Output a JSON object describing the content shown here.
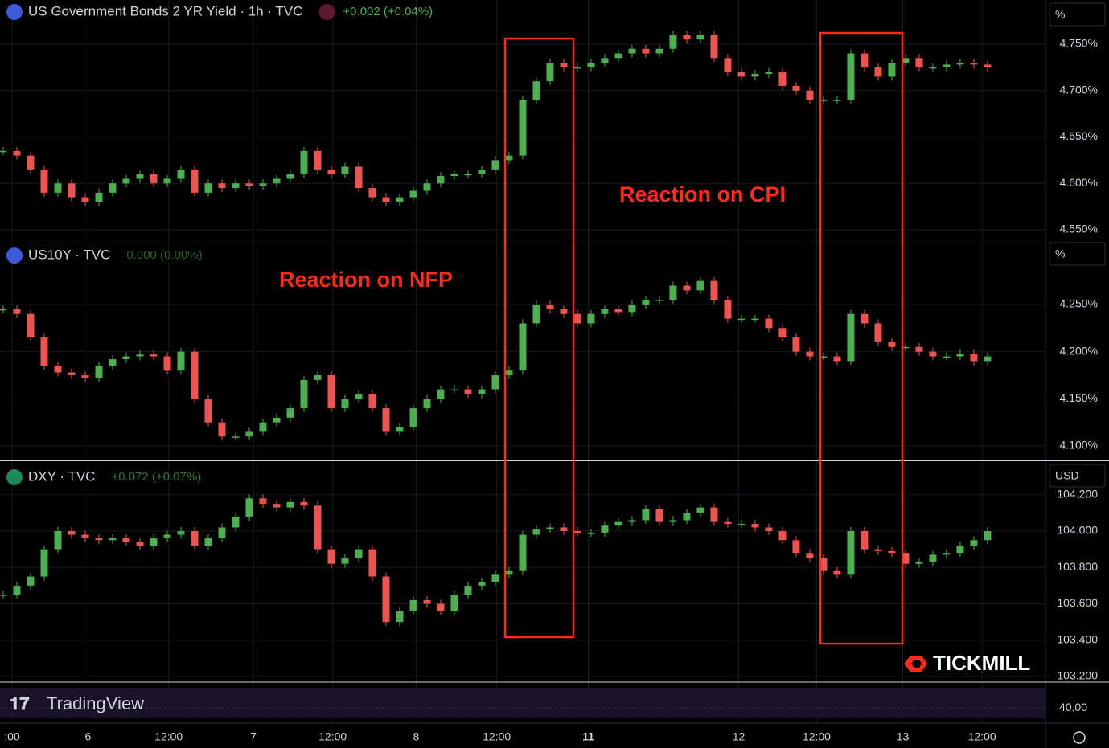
{
  "panes": [
    {
      "type": "candlestick",
      "title": "US Government Bonds 2 YR Yield · 1h · TVC",
      "change": "+0.002 (+0.04%)",
      "change_color": "#4caf50",
      "unit": "%",
      "ylim": [
        4.5405,
        4.7976
      ],
      "yticks": [
        {
          "value": 4.55,
          "label": "4.550%"
        },
        {
          "value": 4.6,
          "label": "4.600%"
        },
        {
          "value": 4.65,
          "label": "4.650%"
        },
        {
          "value": 4.7,
          "label": "4.700%"
        },
        {
          "value": 4.75,
          "label": "4.750%"
        }
      ],
      "closes": [
        4.635,
        4.63,
        4.615,
        4.59,
        4.6,
        4.585,
        4.58,
        4.59,
        4.6,
        4.605,
        4.61,
        4.6,
        4.605,
        4.615,
        4.59,
        4.6,
        4.595,
        4.6,
        4.597,
        4.6,
        4.605,
        4.61,
        4.635,
        4.615,
        4.61,
        4.618,
        4.595,
        4.585,
        4.58,
        4.585,
        4.592,
        4.6,
        4.608,
        4.61,
        4.61,
        4.615,
        4.625,
        4.63,
        4.69,
        4.71,
        4.73,
        4.725,
        4.725,
        4.73,
        4.735,
        4.74,
        4.745,
        4.74,
        4.745,
        4.76,
        4.755,
        4.76,
        4.735,
        4.72,
        4.715,
        4.718,
        4.72,
        4.705,
        4.7,
        4.69,
        4.69,
        4.69,
        4.74,
        4.725,
        4.715,
        4.73,
        4.735,
        4.725,
        4.725,
        4.728,
        4.73,
        4.728,
        4.725
      ]
    },
    {
      "type": "candlestick",
      "title": "US10Y · TVC",
      "change": "0.000 (0.00%)",
      "change_color": "#2e5e30",
      "unit": "%",
      "ylim": [
        4.0847,
        4.319
      ],
      "yticks": [
        {
          "value": 4.1,
          "label": "4.100%"
        },
        {
          "value": 4.15,
          "label": "4.150%"
        },
        {
          "value": 4.2,
          "label": "4.200%"
        },
        {
          "value": 4.25,
          "label": "4.250%"
        }
      ],
      "closes": [
        4.245,
        4.24,
        4.215,
        4.185,
        4.178,
        4.175,
        4.172,
        4.185,
        4.192,
        4.195,
        4.197,
        4.195,
        4.18,
        4.2,
        4.15,
        4.125,
        4.11,
        4.11,
        4.115,
        4.125,
        4.13,
        4.14,
        4.17,
        4.175,
        4.14,
        4.15,
        4.155,
        4.14,
        4.115,
        4.12,
        4.14,
        4.15,
        4.16,
        4.16,
        4.155,
        4.16,
        4.175,
        4.18,
        4.23,
        4.25,
        4.245,
        4.24,
        4.23,
        4.24,
        4.245,
        4.242,
        4.25,
        4.255,
        4.255,
        4.27,
        4.265,
        4.275,
        4.255,
        4.235,
        4.235,
        4.235,
        4.225,
        4.215,
        4.2,
        4.195,
        4.195,
        4.19,
        4.24,
        4.23,
        4.21,
        4.205,
        4.205,
        4.2,
        4.195,
        4.195,
        4.198,
        4.19,
        4.195
      ]
    },
    {
      "type": "candlestick",
      "title": "DXY · TVC",
      "change": "+0.072 (+0.07%)",
      "change_color": "#2e7d32",
      "unit": "USD",
      "ylim": [
        103.1735,
        104.3845
      ],
      "yticks": [
        {
          "value": 103.2,
          "label": "103.200"
        },
        {
          "value": 103.4,
          "label": "103.400"
        },
        {
          "value": 103.6,
          "label": "103.600"
        },
        {
          "value": 103.8,
          "label": "103.800"
        },
        {
          "value": 104,
          "label": "104.000"
        },
        {
          "value": 104.2,
          "label": "104.200"
        }
      ],
      "closes": [
        103.65,
        103.7,
        103.75,
        103.9,
        104,
        103.98,
        103.96,
        103.95,
        103.96,
        103.94,
        103.92,
        103.96,
        103.98,
        104,
        103.92,
        103.96,
        104.02,
        104.08,
        104.18,
        104.15,
        104.13,
        104.16,
        104.14,
        103.9,
        103.82,
        103.85,
        103.9,
        103.75,
        103.5,
        103.56,
        103.62,
        103.6,
        103.56,
        103.65,
        103.7,
        103.72,
        103.76,
        103.78,
        103.98,
        104.01,
        104.02,
        104,
        103.99,
        103.99,
        104.03,
        104.05,
        104.06,
        104.12,
        104.05,
        104.06,
        104.1,
        104.13,
        104.05,
        104.04,
        104.04,
        104.02,
        104,
        103.95,
        103.88,
        103.85,
        103.78,
        103.76,
        104,
        103.9,
        103.89,
        103.88,
        103.82,
        103.83,
        103.87,
        103.88,
        103.92,
        103.95,
        104
      ]
    }
  ],
  "rsi": {
    "ylim": [
      20,
      75
    ],
    "yticks": [
      {
        "value": 40,
        "label": "40.00"
      }
    ]
  },
  "xlim": [
    -0.235,
    76.24
  ],
  "xticks": [
    {
      "value": 0.65,
      "label": ":00"
    },
    {
      "value": 6.2,
      "label": "6"
    },
    {
      "value": 12.1,
      "label": "12:00"
    },
    {
      "value": 18.3,
      "label": "7"
    },
    {
      "value": 24.1,
      "label": "12:00"
    },
    {
      "value": 30.2,
      "label": "8"
    },
    {
      "value": 36.1,
      "label": "12:00"
    },
    {
      "value": 42.8,
      "label": "11"
    },
    {
      "value": 53.8,
      "label": "12"
    },
    {
      "value": 59.5,
      "label": "12:00"
    },
    {
      "value": 65.8,
      "label": "13"
    },
    {
      "value": 71.6,
      "label": "12:00"
    }
  ],
  "annotations": [
    "Reaction on CPI",
    "Reaction on NFP"
  ],
  "brand": "TICKMILL",
  "watermark": "TradingView",
  "up_color": "#4caf50",
  "down_color": "#ef5350"
}
